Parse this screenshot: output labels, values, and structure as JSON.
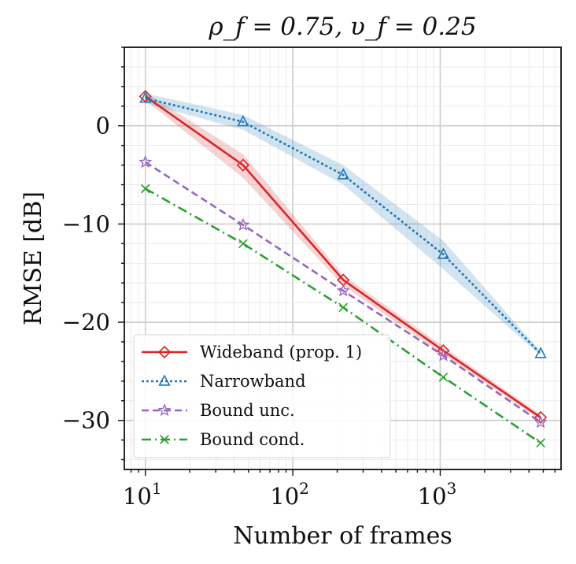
{
  "chart_data": {
    "type": "line",
    "title": "ρ_f = 0.75, υ_f = 0.25",
    "xlabel": "Number of frames",
    "ylabel": "RMSE [dB]",
    "xscale": "log",
    "xlim": [
      7.2,
      6600
    ],
    "ylim": [
      -35,
      8
    ],
    "xticks": [
      {
        "value": 10,
        "base": "10",
        "exp": "1"
      },
      {
        "value": 100,
        "base": "10",
        "exp": "2"
      },
      {
        "value": 1000,
        "base": "10",
        "exp": "3"
      }
    ],
    "yticks": [
      {
        "value": 0,
        "label": "0"
      },
      {
        "value": -10,
        "label": "−10"
      },
      {
        "value": -20,
        "label": "−20"
      },
      {
        "value": -30,
        "label": "−30"
      }
    ],
    "grid": true,
    "legend_position": "bottom-left",
    "x": [
      10,
      46,
      220,
      1050,
      4800
    ],
    "series": [
      {
        "name": "Wideband (prop. 1)",
        "color": "#d62728",
        "dash": "",
        "marker": "diamond",
        "values": [
          3.0,
          -4.0,
          -15.7,
          -22.9,
          -29.7
        ],
        "band_low": [
          2.6,
          -5.3,
          -16.3,
          -23.3,
          -30.0
        ],
        "band_high": [
          3.4,
          -2.9,
          -15.2,
          -22.5,
          -29.4
        ]
      },
      {
        "name": "Narrowband",
        "color": "#1f77b4",
        "dash": "3,3",
        "marker": "triangle",
        "values": [
          2.8,
          0.4,
          -5.0,
          -13.1,
          -23.2
        ],
        "band_low": [
          2.3,
          -0.4,
          -6.0,
          -14.6,
          -23.4
        ],
        "band_high": [
          3.3,
          1.1,
          -4.0,
          -11.7,
          -23.0
        ]
      },
      {
        "name": "Bound unc.",
        "color": "#9467bd",
        "dash": "9,5",
        "marker": "star",
        "values": [
          -3.7,
          -10.1,
          -16.8,
          -23.4,
          -30.2
        ]
      },
      {
        "name": "Bound cond.",
        "color": "#2ca02c",
        "dash": "12,5,2,5",
        "marker": "x",
        "values": [
          -6.4,
          -12.0,
          -18.5,
          -25.6,
          -32.3
        ]
      }
    ]
  }
}
